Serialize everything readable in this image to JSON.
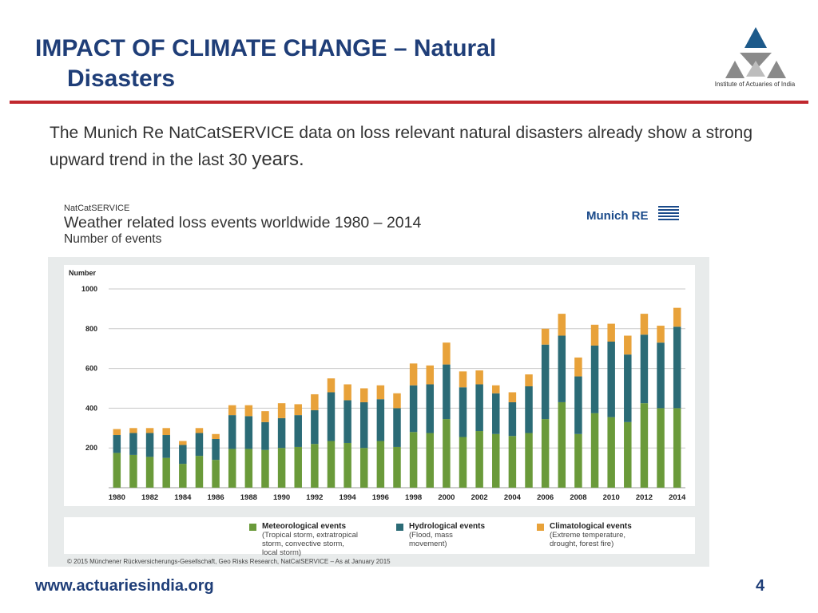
{
  "slide": {
    "title_line1": "IMPACT OF CLIMATE CHANGE – Natural",
    "title_line2": "Disasters",
    "logo_caption": "Institute of Actuaries of India",
    "intro_main": "The Munich Re NatCatSERVICE data on loss relevant natural disasters already show a strong upward trend in the last 30 ",
    "intro_tail": "years.",
    "url": "www.actuariesindia.org",
    "page_number": "4"
  },
  "figure": {
    "source_label": "NatCatSERVICE",
    "heading": "Weather related loss events worldwide 1980 – 2014",
    "subheading": "Number of events",
    "brand": "Munich RE",
    "legend": [
      {
        "title": "Meteorological events",
        "desc1": "(Tropical storm, extratropical",
        "desc2": "storm, convective storm,",
        "desc3": "local storm)",
        "color": "#6a9a3a"
      },
      {
        "title": "Hydrological events",
        "desc1": "(Flood, mass",
        "desc2": "movement)",
        "desc3": "",
        "color": "#2b6b76"
      },
      {
        "title": "Climatological events",
        "desc1": "(Extreme temperature,",
        "desc2": "drought, forest fire)",
        "desc3": "",
        "color": "#e8a23a"
      }
    ],
    "copyright": "© 2015 Münchener Rückversicherungs-Gesellschaft, Geo Risks Research, NatCatSERVICE – As at January 2015"
  },
  "chart_data": {
    "type": "bar",
    "stacked": true,
    "title": "Weather related loss events worldwide 1980 – 2014",
    "subtitle": "Number of events",
    "ylabel": "Number",
    "ylim": [
      0,
      1000
    ],
    "yticks": [
      200,
      400,
      600,
      800,
      1000
    ],
    "grid": true,
    "legend_position": "bottom",
    "categories": [
      "1980",
      "1981",
      "1982",
      "1983",
      "1984",
      "1985",
      "1986",
      "1987",
      "1988",
      "1989",
      "1990",
      "1991",
      "1992",
      "1993",
      "1994",
      "1995",
      "1996",
      "1997",
      "1998",
      "1999",
      "2000",
      "2001",
      "2002",
      "2003",
      "2004",
      "2005",
      "2006",
      "2007",
      "2008",
      "2009",
      "2010",
      "2011",
      "2012",
      "2013",
      "2014"
    ],
    "xtick_labels": [
      "1980",
      "1982",
      "1984",
      "1986",
      "1988",
      "1990",
      "1992",
      "1994",
      "1996",
      "1998",
      "2000",
      "2002",
      "2004",
      "2006",
      "2008",
      "2010",
      "2012",
      "2014"
    ],
    "series": [
      {
        "name": "Meteorological events",
        "color": "#6a9a3a",
        "values": [
          175,
          165,
          155,
          150,
          120,
          160,
          140,
          195,
          195,
          190,
          200,
          205,
          220,
          235,
          225,
          200,
          235,
          205,
          280,
          275,
          345,
          255,
          285,
          270,
          260,
          275,
          345,
          430,
          270,
          375,
          355,
          330,
          425,
          400,
          400
        ]
      },
      {
        "name": "Hydrological events",
        "color": "#2b6b76",
        "values": [
          90,
          110,
          120,
          115,
          95,
          115,
          105,
          170,
          165,
          140,
          150,
          160,
          170,
          245,
          215,
          230,
          210,
          195,
          235,
          245,
          275,
          250,
          235,
          205,
          170,
          235,
          375,
          335,
          290,
          340,
          380,
          340,
          345,
          330,
          410
        ]
      },
      {
        "name": "Climatological events",
        "color": "#e8a23a",
        "values": [
          30,
          25,
          25,
          35,
          20,
          25,
          25,
          50,
          55,
          55,
          75,
          55,
          80,
          70,
          80,
          70,
          70,
          75,
          110,
          95,
          110,
          80,
          70,
          40,
          50,
          60,
          80,
          110,
          95,
          105,
          90,
          95,
          105,
          85,
          95
        ]
      }
    ]
  }
}
